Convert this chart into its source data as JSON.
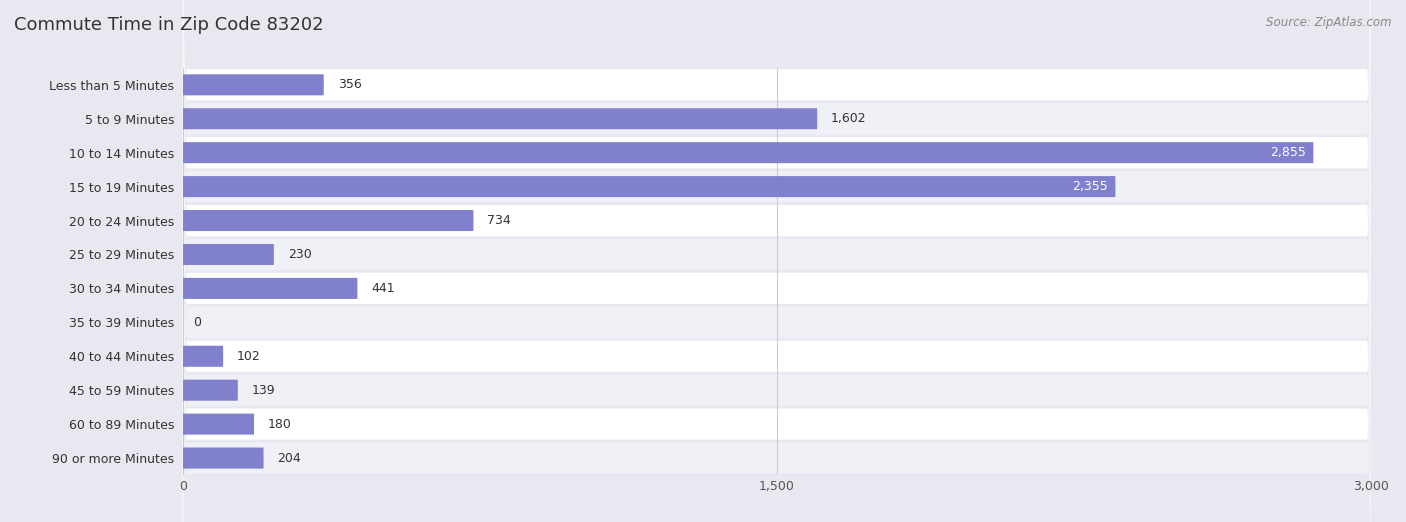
{
  "title": "Commute Time in Zip Code 83202",
  "source": "Source: ZipAtlas.com",
  "categories": [
    "Less than 5 Minutes",
    "5 to 9 Minutes",
    "10 to 14 Minutes",
    "15 to 19 Minutes",
    "20 to 24 Minutes",
    "25 to 29 Minutes",
    "30 to 34 Minutes",
    "35 to 39 Minutes",
    "40 to 44 Minutes",
    "45 to 59 Minutes",
    "60 to 89 Minutes",
    "90 or more Minutes"
  ],
  "values": [
    356,
    1602,
    2855,
    2355,
    734,
    230,
    441,
    0,
    102,
    139,
    180,
    204
  ],
  "bar_color": "#8080cc",
  "row_bg_color": "#ffffff",
  "row_bg_color_alt": "#f0f0f7",
  "outer_bg_color": "#e8e8f0",
  "xlim": [
    0,
    3000
  ],
  "xticks": [
    0,
    1500,
    3000
  ],
  "title_fontsize": 13,
  "label_fontsize": 9,
  "value_fontsize": 9,
  "source_fontsize": 8.5
}
